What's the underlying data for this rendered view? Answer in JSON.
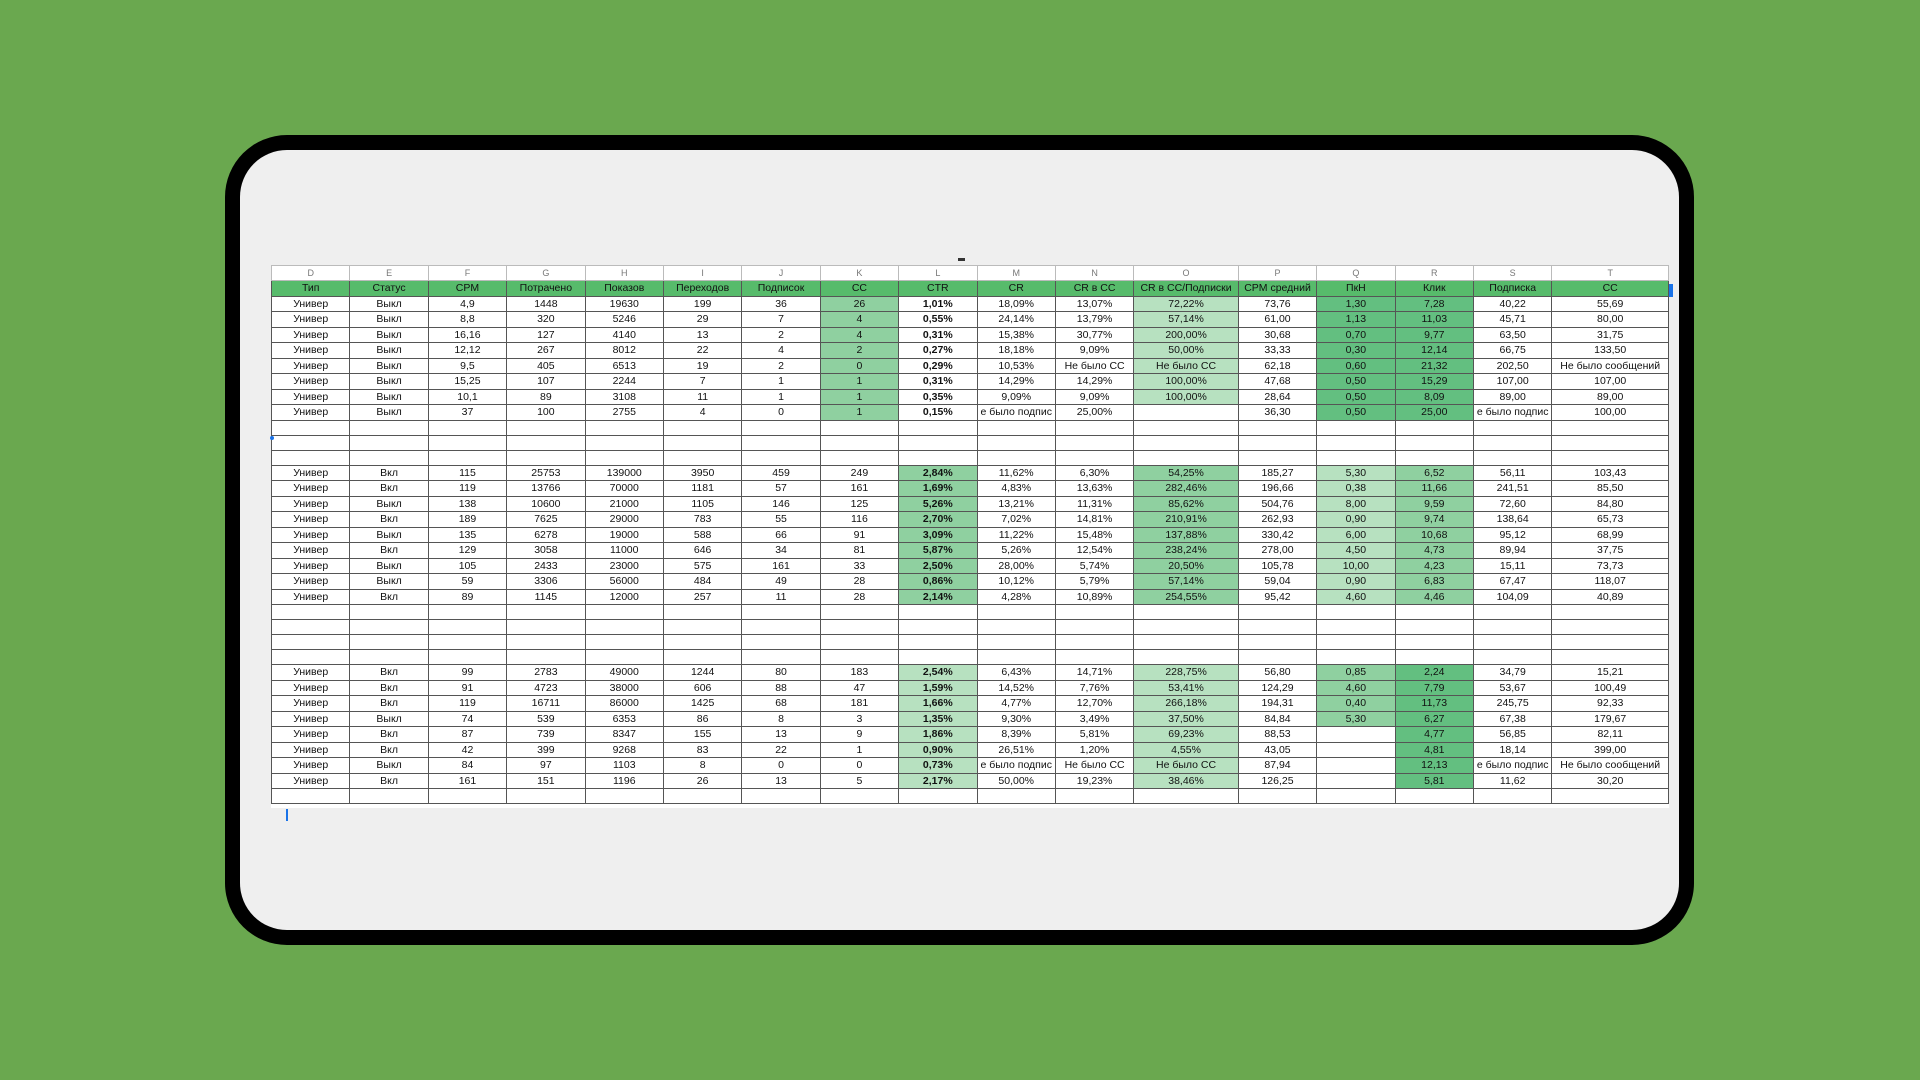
{
  "columns": [
    "D",
    "E",
    "F",
    "G",
    "H",
    "I",
    "J",
    "K",
    "L",
    "M",
    "N",
    "O",
    "P",
    "Q",
    "R",
    "S",
    "T"
  ],
  "headers": [
    "Тип",
    "Статус",
    "CPM",
    "Потрачено",
    "Показов",
    "Переходов",
    "Подписок",
    "CC",
    "CTR",
    "CR",
    "CR в CC",
    "CR в CC/Подписки",
    "CPM средний",
    "ПкН",
    "Клик",
    "Подписка",
    "CC"
  ],
  "sections": [
    {
      "rows": [
        [
          "Универ",
          "Выкл",
          "4,9",
          "1448",
          "19630",
          "199",
          "36",
          "26",
          "1,01%",
          "18,09%",
          "13,07%",
          "72,22%",
          "73,76",
          "1,30",
          "7,28",
          "40,22",
          "55,69"
        ],
        [
          "Универ",
          "Выкл",
          "8,8",
          "320",
          "5246",
          "29",
          "7",
          "4",
          "0,55%",
          "24,14%",
          "13,79%",
          "57,14%",
          "61,00",
          "1,13",
          "11,03",
          "45,71",
          "80,00"
        ],
        [
          "Универ",
          "Выкл",
          "16,16",
          "127",
          "4140",
          "13",
          "2",
          "4",
          "0,31%",
          "15,38%",
          "30,77%",
          "200,00%",
          "30,68",
          "0,70",
          "9,77",
          "63,50",
          "31,75"
        ],
        [
          "Универ",
          "Выкл",
          "12,12",
          "267",
          "8012",
          "22",
          "4",
          "2",
          "0,27%",
          "18,18%",
          "9,09%",
          "50,00%",
          "33,33",
          "0,30",
          "12,14",
          "66,75",
          "133,50"
        ],
        [
          "Универ",
          "Выкл",
          "9,5",
          "405",
          "6513",
          "19",
          "2",
          "0",
          "0,29%",
          "10,53%",
          "Не было CC",
          "Не было CC",
          "62,18",
          "0,60",
          "21,32",
          "202,50",
          "Не было сообщений"
        ],
        [
          "Универ",
          "Выкл",
          "15,25",
          "107",
          "2244",
          "7",
          "1",
          "1",
          "0,31%",
          "14,29%",
          "14,29%",
          "100,00%",
          "47,68",
          "0,50",
          "15,29",
          "107,00",
          "107,00"
        ],
        [
          "Универ",
          "Выкл",
          "10,1",
          "89",
          "3108",
          "11",
          "1",
          "1",
          "0,35%",
          "9,09%",
          "9,09%",
          "100,00%",
          "28,64",
          "0,50",
          "8,09",
          "89,00",
          "89,00"
        ],
        [
          "Универ",
          "Выкл",
          "37",
          "100",
          "2755",
          "4",
          "0",
          "1",
          "0,15%",
          "е было подпис",
          "25,00%",
          "",
          "36,30",
          "0,50",
          "25,00",
          "е было подпис",
          "100,00"
        ]
      ]
    },
    {
      "rows": [
        [
          "Универ",
          "Вкл",
          "115",
          "25753",
          "139000",
          "3950",
          "459",
          "249",
          "2,84%",
          "11,62%",
          "6,30%",
          "54,25%",
          "185,27",
          "5,30",
          "6,52",
          "56,11",
          "103,43"
        ],
        [
          "Универ",
          "Вкл",
          "119",
          "13766",
          "70000",
          "1181",
          "57",
          "161",
          "1,69%",
          "4,83%",
          "13,63%",
          "282,46%",
          "196,66",
          "0,38",
          "11,66",
          "241,51",
          "85,50"
        ],
        [
          "Универ",
          "Выкл",
          "138",
          "10600",
          "21000",
          "1105",
          "146",
          "125",
          "5,26%",
          "13,21%",
          "11,31%",
          "85,62%",
          "504,76",
          "8,00",
          "9,59",
          "72,60",
          "84,80"
        ],
        [
          "Универ",
          "Вкл",
          "189",
          "7625",
          "29000",
          "783",
          "55",
          "116",
          "2,70%",
          "7,02%",
          "14,81%",
          "210,91%",
          "262,93",
          "0,90",
          "9,74",
          "138,64",
          "65,73"
        ],
        [
          "Универ",
          "Выкл",
          "135",
          "6278",
          "19000",
          "588",
          "66",
          "91",
          "3,09%",
          "11,22%",
          "15,48%",
          "137,88%",
          "330,42",
          "6,00",
          "10,68",
          "95,12",
          "68,99"
        ],
        [
          "Универ",
          "Вкл",
          "129",
          "3058",
          "11000",
          "646",
          "34",
          "81",
          "5,87%",
          "5,26%",
          "12,54%",
          "238,24%",
          "278,00",
          "4,50",
          "4,73",
          "89,94",
          "37,75"
        ],
        [
          "Универ",
          "Выкл",
          "105",
          "2433",
          "23000",
          "575",
          "161",
          "33",
          "2,50%",
          "28,00%",
          "5,74%",
          "20,50%",
          "105,78",
          "10,00",
          "4,23",
          "15,11",
          "73,73"
        ],
        [
          "Универ",
          "Выкл",
          "59",
          "3306",
          "56000",
          "484",
          "49",
          "28",
          "0,86%",
          "10,12%",
          "5,79%",
          "57,14%",
          "59,04",
          "0,90",
          "6,83",
          "67,47",
          "118,07"
        ],
        [
          "Универ",
          "Вкл",
          "89",
          "1145",
          "12000",
          "257",
          "11",
          "28",
          "2,14%",
          "4,28%",
          "10,89%",
          "254,55%",
          "95,42",
          "4,60",
          "4,46",
          "104,09",
          "40,89"
        ]
      ]
    },
    {
      "rows": [
        [
          "Универ",
          "Вкл",
          "99",
          "2783",
          "49000",
          "1244",
          "80",
          "183",
          "2,54%",
          "6,43%",
          "14,71%",
          "228,75%",
          "56,80",
          "0,85",
          "2,24",
          "34,79",
          "15,21"
        ],
        [
          "Универ",
          "Вкл",
          "91",
          "4723",
          "38000",
          "606",
          "88",
          "47",
          "1,59%",
          "14,52%",
          "7,76%",
          "53,41%",
          "124,29",
          "4,60",
          "7,79",
          "53,67",
          "100,49"
        ],
        [
          "Универ",
          "Вкл",
          "119",
          "16711",
          "86000",
          "1425",
          "68",
          "181",
          "1,66%",
          "4,77%",
          "12,70%",
          "266,18%",
          "194,31",
          "0,40",
          "11,73",
          "245,75",
          "92,33"
        ],
        [
          "Универ",
          "Выкл",
          "74",
          "539",
          "6353",
          "86",
          "8",
          "3",
          "1,35%",
          "9,30%",
          "3,49%",
          "37,50%",
          "84,84",
          "5,30",
          "6,27",
          "67,38",
          "179,67"
        ],
        [
          "Универ",
          "Вкл",
          "87",
          "739",
          "8347",
          "155",
          "13",
          "9",
          "1,86%",
          "8,39%",
          "5,81%",
          "69,23%",
          "88,53",
          "",
          "4,77",
          "56,85",
          "82,11"
        ],
        [
          "Универ",
          "Вкл",
          "42",
          "399",
          "9268",
          "83",
          "22",
          "1",
          "0,90%",
          "26,51%",
          "1,20%",
          "4,55%",
          "43,05",
          "",
          "4,81",
          "18,14",
          "399,00"
        ],
        [
          "Универ",
          "Выкл",
          "84",
          "97",
          "1103",
          "8",
          "0",
          "0",
          "0,73%",
          "е было подпис",
          "Не было CC",
          "Не было CC",
          "87,94",
          "",
          "12,13",
          "е было подпис",
          "Не было сообщений"
        ],
        [
          "Универ",
          "Вкл",
          "161",
          "151",
          "1196",
          "26",
          "13",
          "5",
          "2,17%",
          "50,00%",
          "19,23%",
          "38,46%",
          "126,25",
          "",
          "5,81",
          "11,62",
          "30,20"
        ]
      ]
    }
  ],
  "colors": {
    "background": "#6aa84f",
    "header": "#57bb6b",
    "scale": [
      "#d9f0dc",
      "#b7e1c0",
      "#8fd0a0",
      "#63bf80"
    ]
  }
}
